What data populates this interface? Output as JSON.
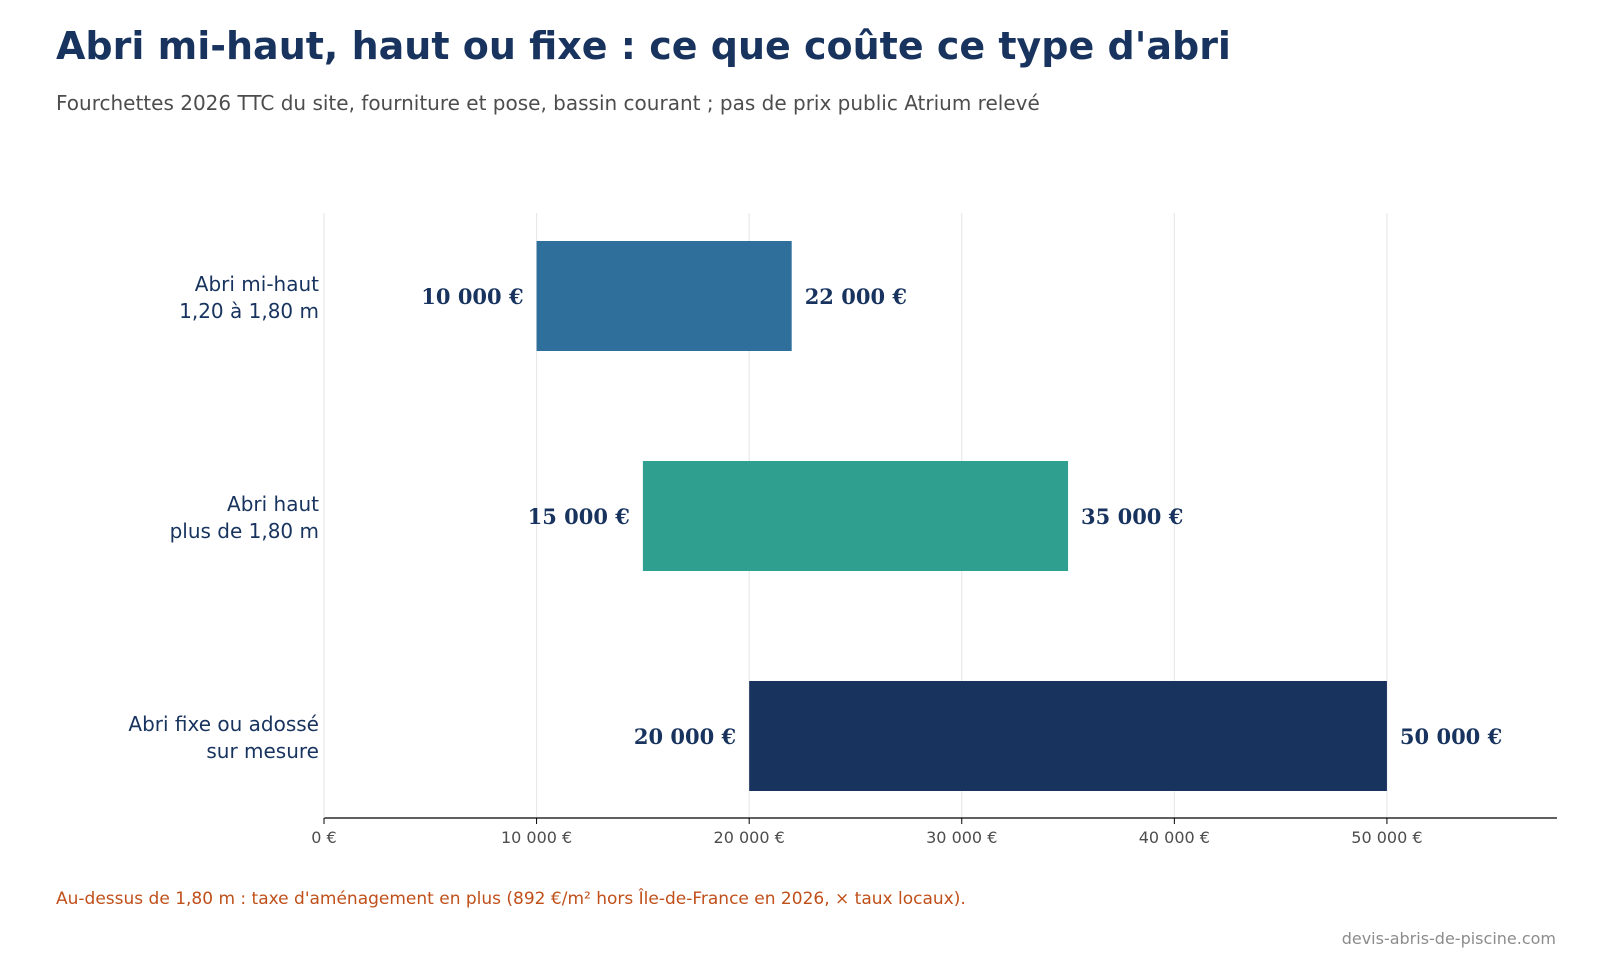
{
  "header": {
    "title": "Abri mi-haut, haut ou fixe : ce que coûte ce type d'abri",
    "subtitle": "Fourchettes 2026 TTC du site, fourniture et pose, bassin courant ; pas de prix public Atrium relevé"
  },
  "chart_data": {
    "type": "bar",
    "orientation": "horizontal",
    "range_bars": true,
    "categories": [
      [
        "Abri mi-haut",
        "1,20 à 1,80 m"
      ],
      [
        "Abri haut",
        "plus de 1,80 m"
      ],
      [
        "Abri fixe ou adossé",
        "sur mesure"
      ]
    ],
    "ranges": [
      {
        "min": 10000,
        "max": 22000,
        "min_label": "10 000 €",
        "max_label": "22 000 €",
        "color": "#2f6f9c"
      },
      {
        "min": 15000,
        "max": 35000,
        "min_label": "15 000 €",
        "max_label": "35 000 €",
        "color": "#2fa08f"
      },
      {
        "min": 20000,
        "max": 50000,
        "min_label": "20 000 €",
        "max_label": "50 000 €",
        "color": "#17335e"
      }
    ],
    "xlim": [
      0,
      58000
    ],
    "x_ticks": [
      0,
      10000,
      20000,
      30000,
      40000,
      50000
    ],
    "x_tick_labels": [
      "0 €",
      "10 000 €",
      "20 000 €",
      "30 000 €",
      "40 000 €",
      "50 000 €"
    ],
    "xlabel": "",
    "ylabel": "",
    "grid": "vertical",
    "legend": "none"
  },
  "footnote": "Au-dessus de 1,80 m : taxe d'aménagement en plus (892 €/m² hors Île-de-France en 2026, × taux locaux).",
  "source": "devis-abris-de-piscine.com",
  "colors": {
    "title": "#17335e",
    "subtitle": "#4d4d4d",
    "labels": "#17335e",
    "tick_labels": "#4d4d4d",
    "grid": "#e6e6e6",
    "axis": "#000000",
    "footnote": "#c0501a",
    "source": "#8c8c8c"
  }
}
